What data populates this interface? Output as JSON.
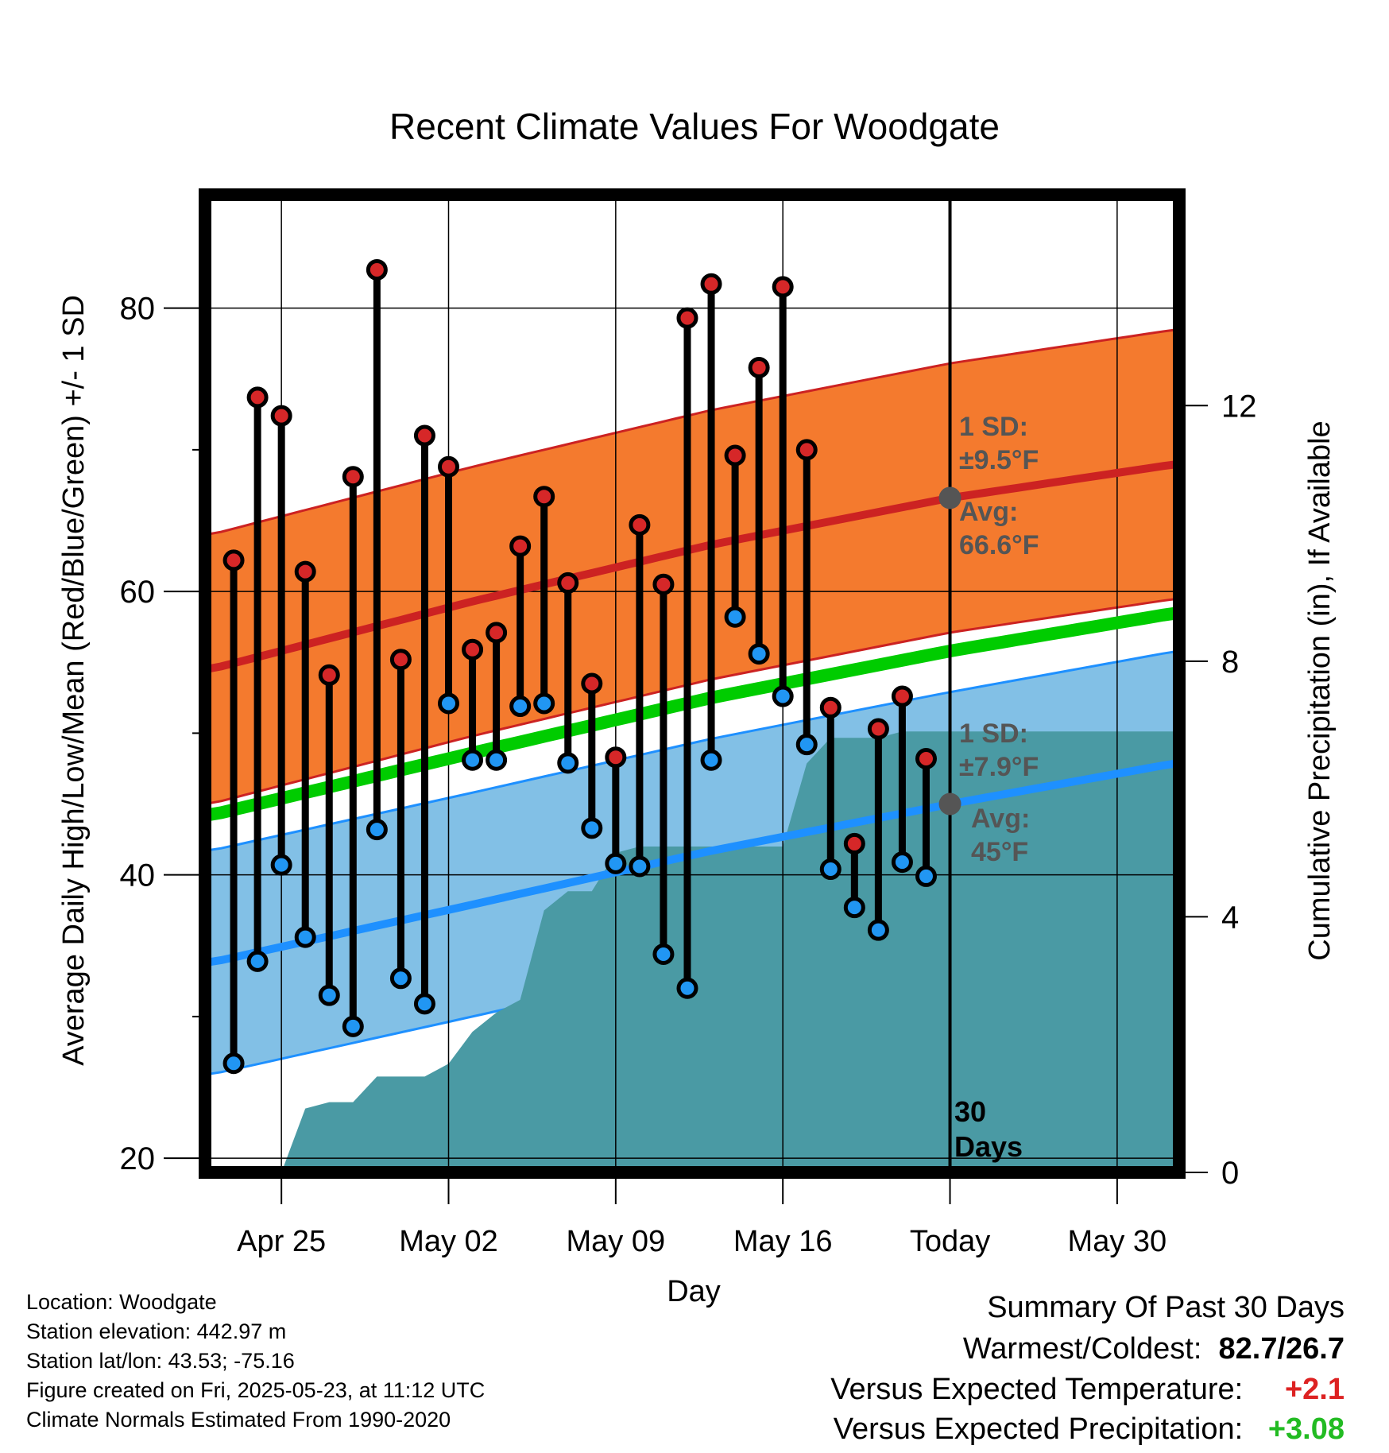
{
  "chart_data": {
    "type": "line",
    "title": "Recent Climate Values For Woodgate",
    "xlabel": "Day",
    "ylabel": "Average Daily High/Low/Mean (Red/Blue/Green) +/- 1 SD",
    "y2label": "Cumulative Precipitation (in), If Available",
    "x_tick_labels": [
      "Apr 25",
      "May 02",
      "May 09",
      "May 16",
      "Today",
      "May 30"
    ],
    "x_tick_day_offsets": [
      -28,
      -21,
      -14,
      -7,
      0,
      7
    ],
    "xlim_day_offsets": [
      -31.2,
      9.6
    ],
    "ylim": [
      19,
      88
    ],
    "y_ticks": [
      20,
      40,
      60,
      80
    ],
    "y2lim": [
      0,
      15.3
    ],
    "y2_ticks": [
      0,
      4,
      8,
      12
    ],
    "grid": true,
    "colors": {
      "high": "#cc2222",
      "low": "#1e90ff",
      "mean": "#00cc00",
      "high_band": "#f47a2e",
      "low_band": "#82c0e6",
      "precip": "#4a9aa4",
      "today_marker": "#555555"
    },
    "observations": {
      "day_offsets": [
        -30,
        -29,
        -28,
        -27,
        -26,
        -25,
        -24,
        -23,
        -22,
        -21,
        -20,
        -19,
        -18,
        -17,
        -16,
        -15,
        -14,
        -13,
        -12,
        -11,
        -10,
        -9,
        -8,
        -7,
        -6,
        -5,
        -4,
        -3,
        -2,
        -1
      ],
      "high": [
        62.2,
        73.7,
        72.4,
        61.4,
        54.1,
        68.1,
        82.7,
        55.2,
        71.0,
        68.8,
        55.9,
        57.1,
        63.2,
        66.7,
        60.6,
        53.5,
        48.3,
        64.7,
        60.5,
        79.3,
        81.7,
        69.6,
        75.8,
        81.5,
        70.0,
        51.8,
        42.2,
        50.3,
        52.6,
        48.2
      ],
      "low": [
        26.7,
        33.9,
        40.7,
        35.6,
        31.5,
        29.3,
        43.2,
        32.7,
        30.9,
        52.1,
        48.1,
        48.1,
        51.9,
        52.1,
        47.9,
        43.3,
        40.8,
        40.6,
        34.4,
        32.0,
        48.1,
        58.2,
        55.6,
        52.6,
        49.2,
        40.4,
        37.7,
        36.1,
        40.9,
        39.9
      ]
    },
    "normals": {
      "day_offsets": [
        -31,
        -20,
        -10,
        0,
        9.5
      ],
      "high_mean": [
        54.5,
        59.3,
        63.3,
        66.6,
        69.0
      ],
      "low_mean": [
        33.8,
        37.9,
        41.7,
        45.0,
        47.9
      ],
      "mean": [
        44.2,
        48.6,
        52.5,
        55.8,
        58.5
      ],
      "high_sd": 9.5,
      "low_sd": 7.9
    },
    "precipitation": {
      "day_offsets": [
        -28,
        -27,
        -26,
        -25,
        -24,
        -23,
        -22,
        -21,
        -20,
        -19,
        -18,
        -17,
        -16,
        -15,
        -14,
        -13,
        -12,
        -11,
        -10,
        -9,
        -8,
        -7,
        -6,
        -5,
        -4,
        -3,
        -2,
        -1,
        0,
        9.6
      ],
      "cumulative_in": [
        0,
        1.0,
        1.1,
        1.1,
        1.5,
        1.5,
        1.5,
        1.7,
        2.2,
        2.5,
        2.7,
        4.1,
        4.4,
        4.4,
        5.0,
        5.1,
        5.1,
        5.1,
        5.1,
        5.1,
        5.1,
        5.1,
        6.4,
        6.8,
        6.8,
        6.8,
        6.9,
        6.9,
        6.9,
        6.9
      ]
    },
    "annotations": {
      "high_sd_label": "1 SD:",
      "high_sd_value": "±9.5°F",
      "high_avg_label": "Avg:",
      "high_avg_value": "66.6°F",
      "low_sd_label": "1 SD:",
      "low_sd_value": "±7.9°F",
      "low_avg_label": "Avg:",
      "low_avg_value": "45°F",
      "days_count": "30",
      "days_word": "Days"
    }
  },
  "info": {
    "location": "Location: Woodgate",
    "elevation": "Station elevation: 442.97 m",
    "latlon": "Station lat/lon: 43.53; -75.16",
    "created": "Figure created on Fri, 2025-05-23, at 11:12 UTC",
    "normals": "Climate Normals Estimated From 1990-2020"
  },
  "summary": {
    "title": "Summary Of Past 30 Days",
    "warmest_coldest_label": "Warmest/Coldest:",
    "warmest_coldest_value": "82.7/26.7",
    "temp_label": "Versus Expected Temperature:",
    "temp_value": "+2.1",
    "temp_color": "#dd2222",
    "precip_label": "Versus Expected Precipitation:",
    "precip_value": "+3.08",
    "precip_color": "#22bb22"
  }
}
